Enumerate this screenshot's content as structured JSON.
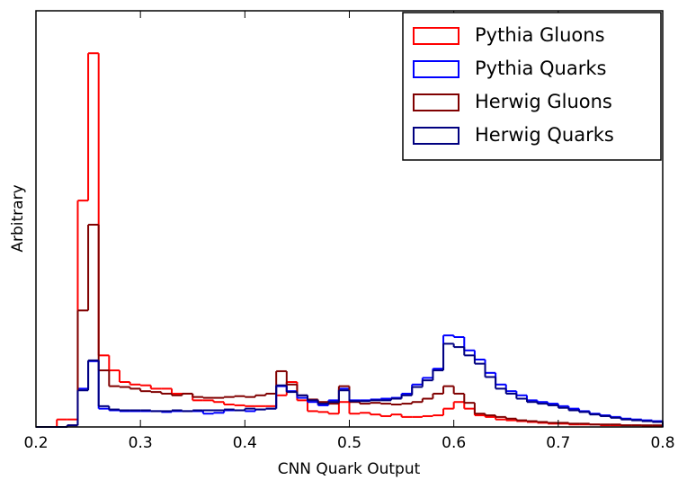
{
  "chart_data": {
    "type": "histogram",
    "xlabel": "CNN Quark Output",
    "ylabel": "Arbitrary",
    "xlim": [
      0.2,
      0.8
    ],
    "ylim": [
      0,
      5
    ],
    "xticks": [
      0.2,
      0.3,
      0.4,
      0.5,
      0.6,
      0.7,
      0.8
    ],
    "legend": "upper right",
    "bins": [
      0.2,
      0.21,
      0.22,
      0.23,
      0.24,
      0.25,
      0.26,
      0.27,
      0.28,
      0.29,
      0.3,
      0.31,
      0.32,
      0.33,
      0.34,
      0.35,
      0.36,
      0.37,
      0.38,
      0.39,
      0.4,
      0.41,
      0.42,
      0.43,
      0.44,
      0.45,
      0.46,
      0.47,
      0.48,
      0.49,
      0.5,
      0.51,
      0.52,
      0.53,
      0.54,
      0.55,
      0.56,
      0.57,
      0.58,
      0.59,
      0.6,
      0.61,
      0.62,
      0.63,
      0.64,
      0.65,
      0.66,
      0.67,
      0.68,
      0.69,
      0.7,
      0.71,
      0.72,
      0.73,
      0.74,
      0.75,
      0.76,
      0.77,
      0.78,
      0.79,
      0.8
    ],
    "series": [
      {
        "name": "Pythia Gluons",
        "color": "#ff0000",
        "values": [
          0,
          0,
          0.09,
          0.09,
          2.72,
          4.49,
          0.86,
          0.68,
          0.54,
          0.51,
          0.5,
          0.46,
          0.46,
          0.4,
          0.4,
          0.32,
          0.32,
          0.3,
          0.27,
          0.26,
          0.25,
          0.25,
          0.25,
          0.38,
          0.54,
          0.32,
          0.19,
          0.18,
          0.16,
          0.3,
          0.16,
          0.17,
          0.15,
          0.13,
          0.15,
          0.12,
          0.12,
          0.13,
          0.14,
          0.22,
          0.3,
          0.22,
          0.14,
          0.12,
          0.09,
          0.08,
          0.07,
          0.06,
          0.05,
          0.04,
          0.04,
          0.03,
          0.03,
          0.03,
          0.02,
          0.02,
          0.02,
          0.02,
          0.01,
          0.01
        ]
      },
      {
        "name": "Pythia Quarks",
        "color": "#0000ff",
        "values": [
          0,
          0,
          0,
          0.02,
          0.46,
          0.79,
          0.22,
          0.2,
          0.19,
          0.19,
          0.19,
          0.19,
          0.18,
          0.19,
          0.19,
          0.19,
          0.16,
          0.17,
          0.2,
          0.2,
          0.19,
          0.21,
          0.22,
          0.49,
          0.43,
          0.35,
          0.3,
          0.26,
          0.32,
          0.46,
          0.32,
          0.32,
          0.33,
          0.34,
          0.35,
          0.4,
          0.51,
          0.59,
          0.7,
          1.1,
          1.08,
          0.92,
          0.81,
          0.65,
          0.51,
          0.43,
          0.38,
          0.32,
          0.3,
          0.28,
          0.25,
          0.22,
          0.19,
          0.16,
          0.14,
          0.12,
          0.1,
          0.09,
          0.08,
          0.07
        ]
      },
      {
        "name": "Herwig Gluons",
        "color": "#800000",
        "values": [
          0,
          0,
          0,
          0.02,
          1.4,
          2.43,
          0.68,
          0.49,
          0.48,
          0.46,
          0.43,
          0.42,
          0.4,
          0.38,
          0.4,
          0.36,
          0.35,
          0.35,
          0.36,
          0.37,
          0.36,
          0.38,
          0.4,
          0.67,
          0.51,
          0.38,
          0.33,
          0.3,
          0.28,
          0.49,
          0.3,
          0.28,
          0.29,
          0.28,
          0.27,
          0.28,
          0.3,
          0.34,
          0.4,
          0.49,
          0.4,
          0.29,
          0.16,
          0.14,
          0.12,
          0.1,
          0.08,
          0.07,
          0.06,
          0.05,
          0.05,
          0.04,
          0.04,
          0.03,
          0.03,
          0.03,
          0.02,
          0.02,
          0.02,
          0.02
        ]
      },
      {
        "name": "Herwig Quarks",
        "color": "#000080",
        "values": [
          0,
          0,
          0,
          0.02,
          0.44,
          0.8,
          0.25,
          0.21,
          0.2,
          0.2,
          0.2,
          0.19,
          0.19,
          0.2,
          0.19,
          0.2,
          0.2,
          0.2,
          0.21,
          0.2,
          0.22,
          0.21,
          0.22,
          0.5,
          0.42,
          0.38,
          0.32,
          0.28,
          0.3,
          0.44,
          0.31,
          0.31,
          0.32,
          0.32,
          0.34,
          0.38,
          0.48,
          0.56,
          0.68,
          1.0,
          0.96,
          0.86,
          0.76,
          0.6,
          0.46,
          0.4,
          0.34,
          0.3,
          0.28,
          0.26,
          0.23,
          0.2,
          0.18,
          0.15,
          0.13,
          0.11,
          0.09,
          0.08,
          0.07,
          0.06
        ]
      }
    ]
  }
}
